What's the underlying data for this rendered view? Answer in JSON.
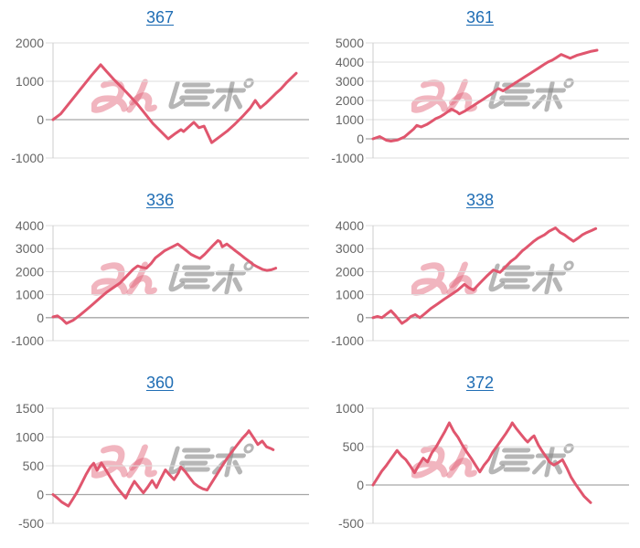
{
  "styles": {
    "background": "#ffffff",
    "line_color": "#e0566e",
    "grid_color": "#dedede",
    "zero_line_color": "#a6a6a6",
    "axis_line_color": "#cccccc",
    "tick_label_color": "#666666",
    "title_link_color": "#1f6db4",
    "watermark_pink": "rgba(224,90,112,0.45)",
    "watermark_gray": "rgba(134,134,134,0.60)"
  },
  "watermark": {
    "text": "みんレポ",
    "part_pink": "みん",
    "part_gray": "レポ"
  },
  "chart_data": [
    {
      "type": "line",
      "title": "367",
      "ylim": [
        -1000,
        2000
      ],
      "yticks": [
        2000,
        1000,
        0,
        -1000
      ],
      "grid": true,
      "legend": "none",
      "points": [
        [
          0,
          0
        ],
        [
          3,
          150
        ],
        [
          6,
          400
        ],
        [
          9,
          650
        ],
        [
          12,
          900
        ],
        [
          15,
          1150
        ],
        [
          18.6,
          1430
        ],
        [
          21,
          1250
        ],
        [
          24,
          1030
        ],
        [
          27,
          830
        ],
        [
          30,
          620
        ],
        [
          33,
          400
        ],
        [
          36,
          150
        ],
        [
          39,
          -100
        ],
        [
          42,
          -300
        ],
        [
          45,
          -500
        ],
        [
          48,
          -350
        ],
        [
          50,
          -260
        ],
        [
          51,
          -310
        ],
        [
          55,
          -70
        ],
        [
          57,
          -210
        ],
        [
          59,
          -170
        ],
        [
          62,
          -600
        ],
        [
          65,
          -450
        ],
        [
          68,
          -300
        ],
        [
          71,
          -120
        ],
        [
          74,
          80
        ],
        [
          77,
          300
        ],
        [
          79,
          500
        ],
        [
          81,
          310
        ],
        [
          83,
          420
        ],
        [
          85,
          550
        ],
        [
          87,
          680
        ],
        [
          89,
          800
        ],
        [
          91,
          950
        ],
        [
          93,
          1080
        ],
        [
          95,
          1210
        ]
      ]
    },
    {
      "type": "line",
      "title": "361",
      "ylim": [
        -1000,
        5000
      ],
      "yticks": [
        5000,
        4000,
        3000,
        2000,
        1000,
        0,
        -1000
      ],
      "grid": true,
      "legend": "none",
      "points": [
        [
          0,
          0
        ],
        [
          2.6,
          120
        ],
        [
          5.3,
          -80
        ],
        [
          7,
          -120
        ],
        [
          9.6,
          -60
        ],
        [
          12.3,
          100
        ],
        [
          14,
          300
        ],
        [
          15.8,
          500
        ],
        [
          17.1,
          700
        ],
        [
          18.8,
          620
        ],
        [
          21,
          750
        ],
        [
          22.8,
          900
        ],
        [
          24.5,
          1050
        ],
        [
          26.3,
          1150
        ],
        [
          28,
          1300
        ],
        [
          30.6,
          1550
        ],
        [
          32.8,
          1400
        ],
        [
          33.7,
          1300
        ],
        [
          35.9,
          1450
        ],
        [
          37.6,
          1600
        ],
        [
          39.4,
          1750
        ],
        [
          41.1,
          1900
        ],
        [
          42.9,
          2050
        ],
        [
          44.6,
          2200
        ],
        [
          46.4,
          2350
        ],
        [
          48.1,
          2550
        ],
        [
          49,
          2620
        ],
        [
          50.8,
          2500
        ],
        [
          52.5,
          2650
        ],
        [
          54.3,
          2800
        ],
        [
          56,
          2950
        ],
        [
          57.8,
          3100
        ],
        [
          59.5,
          3250
        ],
        [
          61.3,
          3400
        ],
        [
          63,
          3550
        ],
        [
          64.8,
          3700
        ],
        [
          66.5,
          3850
        ],
        [
          68.3,
          4000
        ],
        [
          70,
          4100
        ],
        [
          71.8,
          4250
        ],
        [
          73.5,
          4400
        ],
        [
          75.3,
          4300
        ],
        [
          77,
          4200
        ],
        [
          79.6,
          4350
        ],
        [
          82.3,
          4450
        ],
        [
          84.9,
          4550
        ],
        [
          87.5,
          4620
        ]
      ]
    },
    {
      "type": "line",
      "title": "336",
      "ylim": [
        -1000,
        4000
      ],
      "yticks": [
        4000,
        3000,
        2000,
        1000,
        0,
        -1000
      ],
      "grid": true,
      "legend": "none",
      "points": [
        [
          0,
          30
        ],
        [
          1.7,
          80
        ],
        [
          3.5,
          -60
        ],
        [
          5.2,
          -250
        ],
        [
          7.8,
          -120
        ],
        [
          10.4,
          100
        ],
        [
          13.1,
          350
        ],
        [
          15.7,
          600
        ],
        [
          18.3,
          850
        ],
        [
          20.9,
          1100
        ],
        [
          23.5,
          1300
        ],
        [
          26.1,
          1500
        ],
        [
          28.7,
          1800
        ],
        [
          31.3,
          2100
        ],
        [
          33.1,
          2250
        ],
        [
          34.8,
          2180
        ],
        [
          36.5,
          2150
        ],
        [
          38.3,
          2350
        ],
        [
          40,
          2600
        ],
        [
          41.8,
          2750
        ],
        [
          43.5,
          2900
        ],
        [
          45.2,
          3000
        ],
        [
          47,
          3100
        ],
        [
          48.7,
          3200
        ],
        [
          50.5,
          3050
        ],
        [
          52.2,
          2900
        ],
        [
          53.9,
          2750
        ],
        [
          55.7,
          2650
        ],
        [
          57.4,
          2570
        ],
        [
          59.2,
          2750
        ],
        [
          60.9,
          2950
        ],
        [
          62.6,
          3150
        ],
        [
          64.4,
          3350
        ],
        [
          65.3,
          3300
        ],
        [
          66.1,
          3080
        ],
        [
          67.9,
          3200
        ],
        [
          69.6,
          3050
        ],
        [
          71.3,
          2900
        ],
        [
          73.1,
          2750
        ],
        [
          74.8,
          2600
        ],
        [
          76.6,
          2450
        ],
        [
          78.3,
          2300
        ],
        [
          80,
          2200
        ],
        [
          81.8,
          2100
        ],
        [
          83.5,
          2050
        ],
        [
          85.3,
          2080
        ],
        [
          87,
          2150
        ]
      ]
    },
    {
      "type": "line",
      "title": "338",
      "ylim": [
        -1000,
        4000
      ],
      "yticks": [
        4000,
        3000,
        2000,
        1000,
        0,
        -1000
      ],
      "grid": true,
      "legend": "none",
      "points": [
        [
          0,
          0
        ],
        [
          1.7,
          50
        ],
        [
          3.5,
          0
        ],
        [
          5.2,
          150
        ],
        [
          7,
          300
        ],
        [
          8.7,
          100
        ],
        [
          11.3,
          -250
        ],
        [
          13.1,
          -120
        ],
        [
          14.8,
          50
        ],
        [
          16.5,
          130
        ],
        [
          18.3,
          0
        ],
        [
          20,
          150
        ],
        [
          22.6,
          400
        ],
        [
          25.2,
          600
        ],
        [
          27.8,
          800
        ],
        [
          30.5,
          1000
        ],
        [
          33.1,
          1200
        ],
        [
          35.7,
          1450
        ],
        [
          37.4,
          1300
        ],
        [
          39.2,
          1200
        ],
        [
          40.9,
          1400
        ],
        [
          42.6,
          1600
        ],
        [
          44.4,
          1800
        ],
        [
          47,
          2070
        ],
        [
          48.7,
          2000
        ],
        [
          49.6,
          1970
        ],
        [
          51.3,
          2150
        ],
        [
          53.9,
          2450
        ],
        [
          55.7,
          2600
        ],
        [
          58.3,
          2900
        ],
        [
          60,
          3050
        ],
        [
          62.6,
          3300
        ],
        [
          64.4,
          3450
        ],
        [
          67,
          3600
        ],
        [
          68.7,
          3750
        ],
        [
          71.3,
          3900
        ],
        [
          73.1,
          3700
        ],
        [
          74.8,
          3600
        ],
        [
          76.6,
          3450
        ],
        [
          78.3,
          3320
        ],
        [
          80,
          3450
        ],
        [
          81.8,
          3600
        ],
        [
          83.5,
          3700
        ],
        [
          85.3,
          3780
        ],
        [
          87,
          3870
        ]
      ]
    },
    {
      "type": "line",
      "title": "360",
      "ylim": [
        -500,
        1500
      ],
      "yticks": [
        1500,
        1000,
        500,
        0,
        -500
      ],
      "grid": true,
      "legend": "none",
      "points": [
        [
          0,
          0
        ],
        [
          1.7,
          -60
        ],
        [
          3.4,
          -130
        ],
        [
          6,
          -200
        ],
        [
          7.7,
          -80
        ],
        [
          9.5,
          50
        ],
        [
          11.2,
          200
        ],
        [
          12.9,
          350
        ],
        [
          14.6,
          480
        ],
        [
          15.9,
          545
        ],
        [
          17.2,
          420
        ],
        [
          18.9,
          550
        ],
        [
          20.6,
          430
        ],
        [
          22.4,
          300
        ],
        [
          24.1,
          180
        ],
        [
          25.8,
          80
        ],
        [
          28.4,
          -60
        ],
        [
          30.1,
          100
        ],
        [
          31.8,
          230
        ],
        [
          33.5,
          130
        ],
        [
          35.3,
          30
        ],
        [
          37,
          130
        ],
        [
          38.7,
          245
        ],
        [
          40.4,
          120
        ],
        [
          42.1,
          280
        ],
        [
          43.9,
          430
        ],
        [
          45.6,
          340
        ],
        [
          47.3,
          260
        ],
        [
          49,
          380
        ],
        [
          49.9,
          480
        ],
        [
          51.6,
          400
        ],
        [
          53.3,
          300
        ],
        [
          55,
          200
        ],
        [
          56.8,
          140
        ],
        [
          58.5,
          100
        ],
        [
          60.2,
          80
        ],
        [
          61.9,
          200
        ],
        [
          63.6,
          320
        ],
        [
          65.4,
          450
        ],
        [
          67.1,
          570
        ],
        [
          68.8,
          680
        ],
        [
          70.5,
          780
        ],
        [
          72.2,
          880
        ],
        [
          74,
          980
        ],
        [
          75.7,
          1060
        ],
        [
          76.5,
          1110
        ],
        [
          78.3,
          990
        ],
        [
          80,
          870
        ],
        [
          81.7,
          930
        ],
        [
          83.4,
          830
        ],
        [
          85.1,
          800
        ],
        [
          86,
          780
        ]
      ]
    },
    {
      "type": "line",
      "title": "372",
      "ylim": [
        -500,
        1000
      ],
      "yticks": [
        1000,
        500,
        0,
        -500
      ],
      "grid": true,
      "legend": "none",
      "points": [
        [
          0,
          0
        ],
        [
          1.7,
          90
        ],
        [
          3.4,
          180
        ],
        [
          5.1,
          250
        ],
        [
          6.8,
          330
        ],
        [
          8.5,
          410
        ],
        [
          9.4,
          450
        ],
        [
          11.1,
          380
        ],
        [
          12.8,
          330
        ],
        [
          14.5,
          250
        ],
        [
          16.2,
          160
        ],
        [
          17.9,
          260
        ],
        [
          19.6,
          350
        ],
        [
          21.3,
          300
        ],
        [
          23,
          420
        ],
        [
          24.7,
          500
        ],
        [
          26.4,
          600
        ],
        [
          28.1,
          700
        ],
        [
          29.8,
          810
        ],
        [
          31.5,
          700
        ],
        [
          33.2,
          620
        ],
        [
          34.9,
          520
        ],
        [
          36.6,
          430
        ],
        [
          38.3,
          350
        ],
        [
          40,
          260
        ],
        [
          41.7,
          170
        ],
        [
          43.4,
          260
        ],
        [
          45.1,
          330
        ],
        [
          46.8,
          430
        ],
        [
          48.5,
          510
        ],
        [
          50.2,
          590
        ],
        [
          51.9,
          670
        ],
        [
          53.6,
          760
        ],
        [
          54.4,
          810
        ],
        [
          56.1,
          730
        ],
        [
          57.8,
          660
        ],
        [
          59.5,
          590
        ],
        [
          60.4,
          560
        ],
        [
          62.1,
          620
        ],
        [
          62.9,
          640
        ],
        [
          64.6,
          520
        ],
        [
          66.3,
          430
        ],
        [
          68,
          350
        ],
        [
          68.9,
          300
        ],
        [
          70.6,
          260
        ],
        [
          72.3,
          290
        ],
        [
          74,
          330
        ],
        [
          75.7,
          220
        ],
        [
          77.4,
          100
        ],
        [
          79.1,
          10
        ],
        [
          80.8,
          -70
        ],
        [
          82.5,
          -150
        ],
        [
          85,
          -230
        ]
      ]
    }
  ]
}
